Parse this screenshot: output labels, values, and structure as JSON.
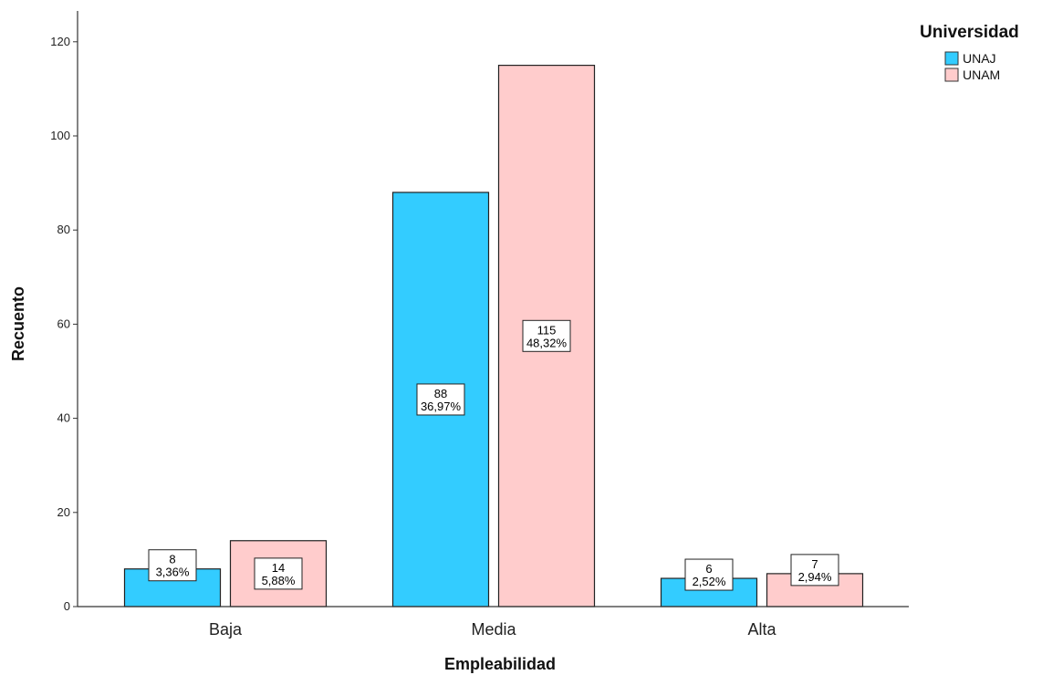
{
  "chart_data": {
    "type": "bar",
    "title": "",
    "xlabel": "Empleabilidad",
    "ylabel": "Recuento",
    "categories": [
      "Baja",
      "Media",
      "Alta"
    ],
    "series": [
      {
        "name": "UNAJ",
        "color": "#33CCFF",
        "values": [
          8,
          88,
          6
        ],
        "percent_labels": [
          "3,36%",
          "36,97%",
          "2,52%"
        ]
      },
      {
        "name": "UNAM",
        "color": "#FFCCCC",
        "values": [
          14,
          115,
          7
        ],
        "percent_labels": [
          "5,88%",
          "48,32%",
          "2,94%"
        ]
      }
    ],
    "yticks": [
      0,
      20,
      40,
      60,
      80,
      100,
      120
    ],
    "ylim": [
      0,
      125
    ],
    "grid": false,
    "legend": {
      "title": "Universidad",
      "placement": "top-right"
    }
  }
}
